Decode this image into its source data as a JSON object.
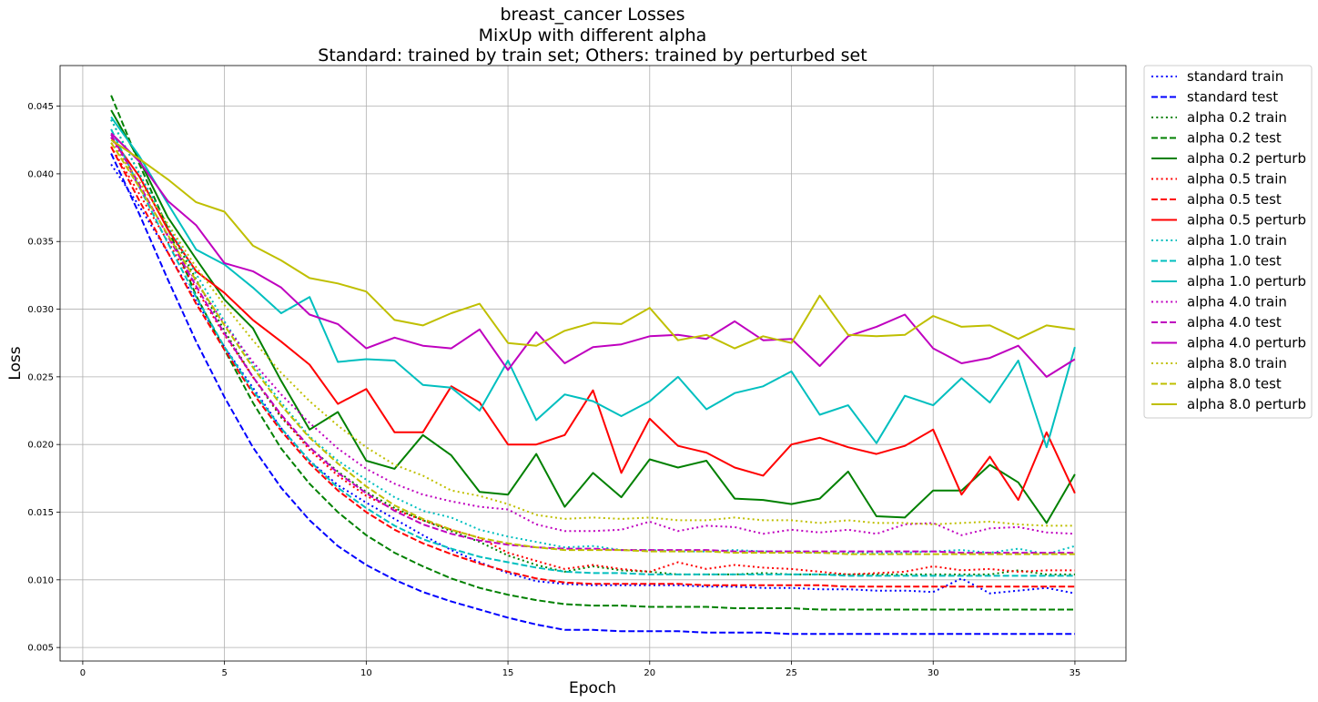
{
  "chart_data": {
    "type": "line",
    "title": [
      "breast_cancer Losses",
      "MixUp with different alpha",
      "Standard: trained by train set; Others: trained by perturbed set"
    ],
    "xlabel": "Epoch",
    "ylabel": "Loss",
    "xlim": [
      -0.8,
      36.8
    ],
    "ylim": [
      0.004,
      0.048
    ],
    "xticks": [
      0,
      5,
      10,
      15,
      20,
      25,
      30,
      35
    ],
    "yticks": [
      0.005,
      0.01,
      0.015,
      0.02,
      0.025,
      0.03,
      0.035,
      0.04,
      0.045
    ],
    "grid": true,
    "legend_position": "outside-upper-right",
    "x": [
      1,
      2,
      3,
      4,
      5,
      6,
      7,
      8,
      9,
      10,
      11,
      12,
      13,
      14,
      15,
      16,
      17,
      18,
      19,
      20,
      21,
      22,
      23,
      24,
      25,
      26,
      27,
      28,
      29,
      30,
      31,
      32,
      33,
      34,
      35
    ],
    "series": [
      {
        "name": "standard train",
        "color": "#0000ff",
        "style": "dotted",
        "values": [
          0.0407,
          0.0376,
          0.0342,
          0.0306,
          0.0272,
          0.0242,
          0.0212,
          0.0188,
          0.017,
          0.0157,
          0.0145,
          0.0133,
          0.0122,
          0.0113,
          0.0105,
          0.0099,
          0.0097,
          0.0096,
          0.0096,
          0.0096,
          0.0096,
          0.0095,
          0.0095,
          0.0094,
          0.0094,
          0.0093,
          0.0093,
          0.0092,
          0.0092,
          0.0091,
          0.0101,
          0.009,
          0.0092,
          0.0094,
          0.009
        ]
      },
      {
        "name": "standard test",
        "color": "#0000ff",
        "style": "dashed",
        "values": [
          0.0415,
          0.037,
          0.0322,
          0.0276,
          0.0235,
          0.0198,
          0.0168,
          0.0144,
          0.0125,
          0.0111,
          0.01,
          0.0091,
          0.0084,
          0.0078,
          0.0072,
          0.0067,
          0.0063,
          0.0063,
          0.0062,
          0.0062,
          0.0062,
          0.0061,
          0.0061,
          0.0061,
          0.006,
          0.006,
          0.006,
          0.006,
          0.006,
          0.006,
          0.006,
          0.006,
          0.006,
          0.006,
          0.006
        ]
      },
      {
        "name": "alpha 0.2 train",
        "color": "#008000",
        "style": "dotted",
        "values": [
          0.044,
          0.04,
          0.0361,
          0.0322,
          0.0284,
          0.025,
          0.022,
          0.0198,
          0.018,
          0.0165,
          0.0153,
          0.0144,
          0.0136,
          0.0128,
          0.0118,
          0.0111,
          0.0106,
          0.011,
          0.0107,
          0.0106,
          0.0104,
          0.0104,
          0.0104,
          0.0105,
          0.0104,
          0.0104,
          0.0104,
          0.0104,
          0.0104,
          0.0104,
          0.0104,
          0.0104,
          0.0107,
          0.0104,
          0.0104
        ]
      },
      {
        "name": "alpha 0.2 test",
        "color": "#008000",
        "style": "dashed",
        "values": [
          0.0458,
          0.0407,
          0.036,
          0.031,
          0.027,
          0.0231,
          0.0197,
          0.0171,
          0.015,
          0.0133,
          0.012,
          0.011,
          0.0101,
          0.0094,
          0.0089,
          0.0085,
          0.0082,
          0.0081,
          0.0081,
          0.008,
          0.008,
          0.008,
          0.0079,
          0.0079,
          0.0079,
          0.0078,
          0.0078,
          0.0078,
          0.0078,
          0.0078,
          0.0078,
          0.0078,
          0.0078,
          0.0078,
          0.0078
        ]
      },
      {
        "name": "alpha 0.2 perturb",
        "color": "#008000",
        "style": "solid",
        "values": [
          0.0447,
          0.041,
          0.0368,
          0.0337,
          0.0307,
          0.0286,
          0.0247,
          0.0211,
          0.0224,
          0.0188,
          0.0182,
          0.0207,
          0.0192,
          0.0165,
          0.0163,
          0.0193,
          0.0154,
          0.0179,
          0.0161,
          0.0189,
          0.0183,
          0.0188,
          0.016,
          0.0159,
          0.0156,
          0.016,
          0.018,
          0.0147,
          0.0146,
          0.0166,
          0.0166,
          0.0185,
          0.0172,
          0.0142,
          0.0178
        ]
      },
      {
        "name": "alpha 0.5 train",
        "color": "#ff0000",
        "style": "dotted",
        "values": [
          0.042,
          0.0385,
          0.035,
          0.0315,
          0.0281,
          0.025,
          0.0221,
          0.0196,
          0.0177,
          0.0162,
          0.0152,
          0.0144,
          0.0137,
          0.0131,
          0.012,
          0.0114,
          0.0108,
          0.0111,
          0.0108,
          0.0106,
          0.0113,
          0.0108,
          0.0111,
          0.0109,
          0.0108,
          0.0106,
          0.0104,
          0.0105,
          0.0106,
          0.011,
          0.0107,
          0.0108,
          0.0106,
          0.0107,
          0.0107
        ]
      },
      {
        "name": "alpha 0.5 test",
        "color": "#ff0000",
        "style": "dashed",
        "values": [
          0.042,
          0.038,
          0.0342,
          0.0304,
          0.027,
          0.0238,
          0.021,
          0.0186,
          0.0166,
          0.015,
          0.0137,
          0.0127,
          0.0119,
          0.0112,
          0.0106,
          0.0101,
          0.0098,
          0.0097,
          0.0097,
          0.0097,
          0.0097,
          0.0096,
          0.0096,
          0.0096,
          0.0096,
          0.0096,
          0.0095,
          0.0095,
          0.0095,
          0.0095,
          0.0095,
          0.0095,
          0.0095,
          0.0095,
          0.0095
        ]
      },
      {
        "name": "alpha 0.5 perturb",
        "color": "#ff0000",
        "style": "solid",
        "values": [
          0.0427,
          0.0398,
          0.0359,
          0.0328,
          0.0312,
          0.0292,
          0.0276,
          0.0259,
          0.023,
          0.0241,
          0.0209,
          0.0209,
          0.0243,
          0.0231,
          0.02,
          0.02,
          0.0207,
          0.024,
          0.0179,
          0.0219,
          0.0199,
          0.0194,
          0.0183,
          0.0177,
          0.02,
          0.0205,
          0.0198,
          0.0193,
          0.0199,
          0.0211,
          0.0163,
          0.0191,
          0.0159,
          0.0209,
          0.0164
        ]
      },
      {
        "name": "alpha 1.0 train",
        "color": "#00bfbf",
        "style": "dotted",
        "values": [
          0.044,
          0.04,
          0.0362,
          0.0326,
          0.0291,
          0.0259,
          0.0231,
          0.0206,
          0.0188,
          0.0174,
          0.0161,
          0.0151,
          0.0146,
          0.0137,
          0.0132,
          0.0128,
          0.0124,
          0.0125,
          0.0122,
          0.0122,
          0.0121,
          0.0121,
          0.0122,
          0.0121,
          0.0121,
          0.012,
          0.012,
          0.012,
          0.012,
          0.0121,
          0.0122,
          0.012,
          0.0123,
          0.0119,
          0.0125
        ]
      },
      {
        "name": "alpha 1.0 test",
        "color": "#00bfbf",
        "style": "dashed",
        "values": [
          0.0433,
          0.039,
          0.0349,
          0.0309,
          0.0272,
          0.024,
          0.0212,
          0.0188,
          0.0168,
          0.0153,
          0.014,
          0.013,
          0.0123,
          0.0117,
          0.0113,
          0.0109,
          0.0106,
          0.0105,
          0.0105,
          0.0104,
          0.0104,
          0.0104,
          0.0104,
          0.0104,
          0.0104,
          0.0104,
          0.0103,
          0.0103,
          0.0103,
          0.0103,
          0.0103,
          0.0103,
          0.0103,
          0.0103,
          0.0103
        ]
      },
      {
        "name": "alpha 1.0 perturb",
        "color": "#00bfbf",
        "style": "solid",
        "values": [
          0.0442,
          0.0413,
          0.0378,
          0.0344,
          0.0333,
          0.0316,
          0.0297,
          0.0309,
          0.0261,
          0.0263,
          0.0262,
          0.0244,
          0.0242,
          0.0225,
          0.0262,
          0.0218,
          0.0237,
          0.0232,
          0.0221,
          0.0232,
          0.025,
          0.0226,
          0.0238,
          0.0243,
          0.0254,
          0.0222,
          0.0229,
          0.0201,
          0.0236,
          0.0229,
          0.0249,
          0.0231,
          0.0262,
          0.0198,
          0.0272
        ]
      },
      {
        "name": "alpha 4.0 train",
        "color": "#bf00bf",
        "style": "dotted",
        "values": [
          0.0427,
          0.039,
          0.0355,
          0.032,
          0.0289,
          0.0261,
          0.0237,
          0.0216,
          0.0197,
          0.0182,
          0.0171,
          0.0163,
          0.0158,
          0.0154,
          0.0152,
          0.0141,
          0.0136,
          0.0136,
          0.0137,
          0.0143,
          0.0136,
          0.014,
          0.0139,
          0.0134,
          0.0137,
          0.0135,
          0.0137,
          0.0134,
          0.0141,
          0.0142,
          0.0133,
          0.0138,
          0.0139,
          0.0135,
          0.0134
        ]
      },
      {
        "name": "alpha 4.0 test",
        "color": "#bf00bf",
        "style": "dashed",
        "values": [
          0.0429,
          0.0392,
          0.0354,
          0.0317,
          0.0282,
          0.025,
          0.0222,
          0.0198,
          0.0179,
          0.0164,
          0.0151,
          0.0141,
          0.0134,
          0.0129,
          0.0126,
          0.0124,
          0.0123,
          0.0123,
          0.0122,
          0.0122,
          0.0122,
          0.0122,
          0.0121,
          0.0121,
          0.0121,
          0.0121,
          0.0121,
          0.0121,
          0.0121,
          0.0121,
          0.012,
          0.012,
          0.012,
          0.012,
          0.012
        ]
      },
      {
        "name": "alpha 4.0 perturb",
        "color": "#bf00bf",
        "style": "solid",
        "values": [
          0.043,
          0.0409,
          0.038,
          0.0362,
          0.0334,
          0.0328,
          0.0316,
          0.0296,
          0.0289,
          0.0271,
          0.0279,
          0.0273,
          0.0271,
          0.0285,
          0.0255,
          0.0283,
          0.026,
          0.0272,
          0.0274,
          0.028,
          0.0281,
          0.0278,
          0.0291,
          0.0277,
          0.0278,
          0.0258,
          0.028,
          0.0287,
          0.0296,
          0.0271,
          0.026,
          0.0264,
          0.0273,
          0.025,
          0.0263
        ]
      },
      {
        "name": "alpha 8.0 train",
        "color": "#bfbf00",
        "style": "dotted",
        "values": [
          0.0423,
          0.0394,
          0.0363,
          0.0331,
          0.0303,
          0.0277,
          0.0253,
          0.0232,
          0.0214,
          0.0198,
          0.0185,
          0.0177,
          0.0166,
          0.0162,
          0.0156,
          0.0148,
          0.0145,
          0.0146,
          0.0145,
          0.0146,
          0.0144,
          0.0144,
          0.0146,
          0.0144,
          0.0144,
          0.0142,
          0.0144,
          0.0142,
          0.0142,
          0.0141,
          0.0142,
          0.0143,
          0.0141,
          0.014,
          0.014
        ]
      },
      {
        "name": "alpha 8.0 test",
        "color": "#bfbf00",
        "style": "dashed",
        "values": [
          0.0423,
          0.039,
          0.0355,
          0.0321,
          0.0288,
          0.0257,
          0.0229,
          0.0205,
          0.0186,
          0.0169,
          0.0155,
          0.0145,
          0.0137,
          0.0131,
          0.0127,
          0.0124,
          0.0122,
          0.0122,
          0.0122,
          0.0121,
          0.0121,
          0.0121,
          0.012,
          0.012,
          0.012,
          0.012,
          0.0119,
          0.0119,
          0.0119,
          0.0119,
          0.0119,
          0.0119,
          0.0119,
          0.0119,
          0.0119
        ]
      },
      {
        "name": "alpha 8.0 perturb",
        "color": "#bfbf00",
        "style": "solid",
        "values": [
          0.0425,
          0.0411,
          0.0396,
          0.0379,
          0.0372,
          0.0347,
          0.0336,
          0.0323,
          0.0319,
          0.0313,
          0.0292,
          0.0288,
          0.0297,
          0.0304,
          0.0275,
          0.0273,
          0.0284,
          0.029,
          0.0289,
          0.0301,
          0.0277,
          0.0281,
          0.0271,
          0.028,
          0.0275,
          0.031,
          0.0281,
          0.028,
          0.0281,
          0.0295,
          0.0287,
          0.0288,
          0.0278,
          0.0288,
          0.0285
        ]
      }
    ]
  }
}
